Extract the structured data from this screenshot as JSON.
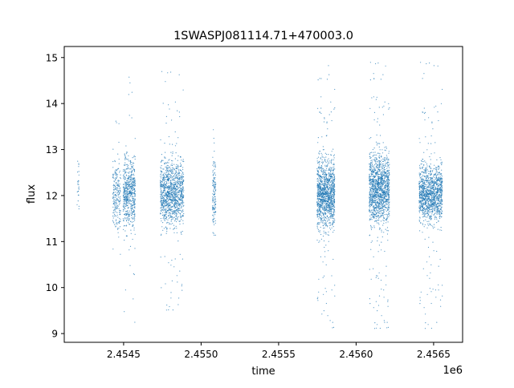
{
  "chart_data": {
    "type": "scatter",
    "title": "1SWASPJ081114.71+470003.0",
    "xlabel": "time",
    "ylabel": "flux",
    "x_offset_label": "1e6",
    "xlim": [
      2454117,
      2456687
    ],
    "ylim": [
      8.81,
      15.24
    ],
    "xticks": [
      2454500,
      2455000,
      2455500,
      2456000,
      2456500
    ],
    "xtick_labels": [
      "2.4545",
      "2.4550",
      "2.4555",
      "2.4560",
      "2.4565"
    ],
    "yticks": [
      9,
      10,
      11,
      12,
      13,
      14,
      15
    ],
    "ytick_labels": [
      "9",
      "10",
      "11",
      "12",
      "13",
      "14",
      "15"
    ],
    "grid": false,
    "marker_color": "#1f77b4",
    "note": "Dense point clusters (observing seasons); each entry: time range, core flux range, outlier flux range, approx point count",
    "clusters": [
      {
        "x": [
          2454200,
          2454215
        ],
        "core": [
          11.3,
          13.0
        ],
        "out": [
          11.3,
          13.0
        ],
        "n": 25
      },
      {
        "x": [
          2454430,
          2454481
        ],
        "core": [
          11.0,
          13.0
        ],
        "out": [
          10.3,
          13.7
        ],
        "n": 220
      },
      {
        "x": [
          2454497,
          2454575
        ],
        "core": [
          11.0,
          13.1
        ],
        "out": [
          9.2,
          14.7
        ],
        "n": 600
      },
      {
        "x": [
          2454737,
          2454888
        ],
        "core": [
          11.1,
          13.0
        ],
        "out": [
          9.5,
          14.7
        ],
        "n": 1200
      },
      {
        "x": [
          2455074,
          2455095
        ],
        "core": [
          11.0,
          13.1
        ],
        "out": [
          10.9,
          13.6
        ],
        "n": 140
      },
      {
        "x": [
          2455748,
          2455862
        ],
        "core": [
          11.0,
          13.1
        ],
        "out": [
          9.1,
          14.9
        ],
        "n": 1300
      },
      {
        "x": [
          2456085,
          2456215
        ],
        "core": [
          11.1,
          13.2
        ],
        "out": [
          9.1,
          14.9
        ],
        "n": 1400
      },
      {
        "x": [
          2456406,
          2456556
        ],
        "core": [
          11.2,
          12.9
        ],
        "out": [
          9.1,
          14.9
        ],
        "n": 1300
      }
    ]
  }
}
